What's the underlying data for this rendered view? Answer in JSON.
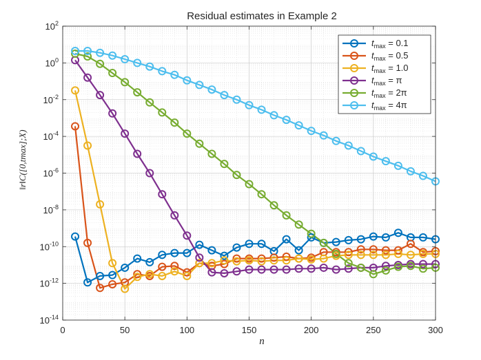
{
  "chart_data": {
    "type": "line",
    "title": "Residual estimates in Example 2",
    "xlabel": "n",
    "ylabel": "‖r‖C([0,tmax];X)",
    "xlim": [
      0,
      300
    ],
    "ylim_log10": [
      -14,
      2
    ],
    "yscale": "log",
    "grid": true,
    "legend_position": "top-right",
    "x_ticks": [
      0,
      50,
      100,
      150,
      200,
      250,
      300
    ],
    "x_tick_labels": [
      "0",
      "50",
      "100",
      "150",
      "200",
      "250",
      "300"
    ],
    "y_ticks_log10": [
      2,
      0,
      -2,
      -4,
      -6,
      -8,
      -10,
      -12,
      -14
    ],
    "y_tick_labels": [
      {
        "base": "10",
        "exp": "2"
      },
      {
        "base": "10",
        "exp": "0"
      },
      {
        "base": "10",
        "exp": "-2"
      },
      {
        "base": "10",
        "exp": "-4"
      },
      {
        "base": "10",
        "exp": "-6"
      },
      {
        "base": "10",
        "exp": "-8"
      },
      {
        "base": "10",
        "exp": "-10"
      },
      {
        "base": "10",
        "exp": "-12"
      },
      {
        "base": "10",
        "exp": "-14"
      }
    ],
    "x": [
      10,
      20,
      30,
      40,
      50,
      60,
      70,
      80,
      90,
      100,
      110,
      120,
      130,
      140,
      150,
      160,
      170,
      180,
      190,
      200,
      210,
      220,
      230,
      240,
      250,
      260,
      270,
      280,
      290,
      300
    ],
    "series": [
      {
        "name": "t_max = 0.1",
        "legend_label": "t",
        "legend_sub": "max",
        "legend_value": "= 0.1",
        "color": "#0072BD",
        "log10_values": [
          -9.45,
          -11.95,
          -11.6,
          -11.55,
          -11.15,
          -10.65,
          -10.85,
          -10.45,
          -10.35,
          -10.35,
          -9.9,
          -10.2,
          -10.5,
          -10.05,
          -9.85,
          -9.85,
          -10.25,
          -9.6,
          -10.2,
          -9.5,
          -9.8,
          -9.75,
          -9.65,
          -9.6,
          -9.45,
          -9.5,
          -9.25,
          -9.5,
          -9.5,
          -9.6
        ]
      },
      {
        "name": "t_max = 0.5",
        "legend_label": "t",
        "legend_sub": "max",
        "legend_value": "= 0.5",
        "color": "#D95319",
        "log10_values": [
          -3.45,
          -9.8,
          -12.25,
          -12.05,
          -11.95,
          -11.5,
          -11.6,
          -11.1,
          -11.05,
          -11.4,
          -10.9,
          -11.05,
          -10.95,
          -10.65,
          -10.65,
          -10.65,
          -10.6,
          -10.55,
          -10.65,
          -10.6,
          -10.3,
          -10.3,
          -10.3,
          -10.15,
          -10.15,
          -10.2,
          -10.2,
          -9.85,
          -10.3,
          -10.25
        ]
      },
      {
        "name": "t_max = 1.0",
        "legend_label": "t",
        "legend_sub": "max",
        "legend_value": "= 1.0",
        "color": "#EDB120",
        "log10_values": [
          -1.5,
          -4.5,
          -7.7,
          -10.9,
          -12.3,
          -11.65,
          -11.5,
          -11.6,
          -11.35,
          -11.6,
          -10.9,
          -10.9,
          -10.75,
          -10.8,
          -10.75,
          -10.8,
          -10.75,
          -10.75,
          -10.65,
          -10.7,
          -10.65,
          -10.5,
          -10.45,
          -10.45,
          -10.45,
          -10.45,
          -10.4,
          -10.45,
          -10.4,
          -10.4
        ]
      },
      {
        "name": "t_max = π",
        "legend_label": "t",
        "legend_sub": "max",
        "legend_value": "= π",
        "color": "#7E2F8E",
        "log10_values": [
          0.15,
          -0.8,
          -1.75,
          -2.75,
          -3.85,
          -4.95,
          -6.0,
          -7.15,
          -8.3,
          -9.4,
          -10.6,
          -11.4,
          -11.45,
          -11.35,
          -11.25,
          -11.25,
          -11.25,
          -11.25,
          -11.2,
          -11.2,
          -11.15,
          -11.25,
          -11.2,
          -11.15,
          -11.15,
          -11.05,
          -11.0,
          -10.95,
          -10.95,
          -10.95
        ]
      },
      {
        "name": "t_max = 2π",
        "legend_label": "t",
        "legend_sub": "max",
        "legend_value": "= 2π",
        "color": "#77AC30",
        "log10_values": [
          0.5,
          0.35,
          -0.05,
          -0.55,
          -1.05,
          -1.6,
          -2.15,
          -2.7,
          -3.25,
          -3.85,
          -4.4,
          -4.95,
          -5.5,
          -6.1,
          -6.6,
          -7.15,
          -7.75,
          -8.3,
          -8.8,
          -9.3,
          -9.8,
          -10.4,
          -10.9,
          -11.15,
          -11.5,
          -11.3,
          -11.1,
          -11.05,
          -11.2,
          -11.15
        ]
      },
      {
        "name": "t_max = 4π",
        "legend_label": "t",
        "legend_sub": "max",
        "legend_value": "= 4π",
        "color": "#4DBEEE",
        "log10_values": [
          0.65,
          0.65,
          0.55,
          0.4,
          0.2,
          -0.0,
          -0.2,
          -0.45,
          -0.65,
          -0.95,
          -1.2,
          -1.45,
          -1.75,
          -2.0,
          -2.3,
          -2.55,
          -2.85,
          -3.1,
          -3.4,
          -3.7,
          -3.95,
          -4.25,
          -4.5,
          -4.8,
          -5.1,
          -5.35,
          -5.6,
          -5.9,
          -6.15,
          -6.45
        ]
      }
    ]
  }
}
